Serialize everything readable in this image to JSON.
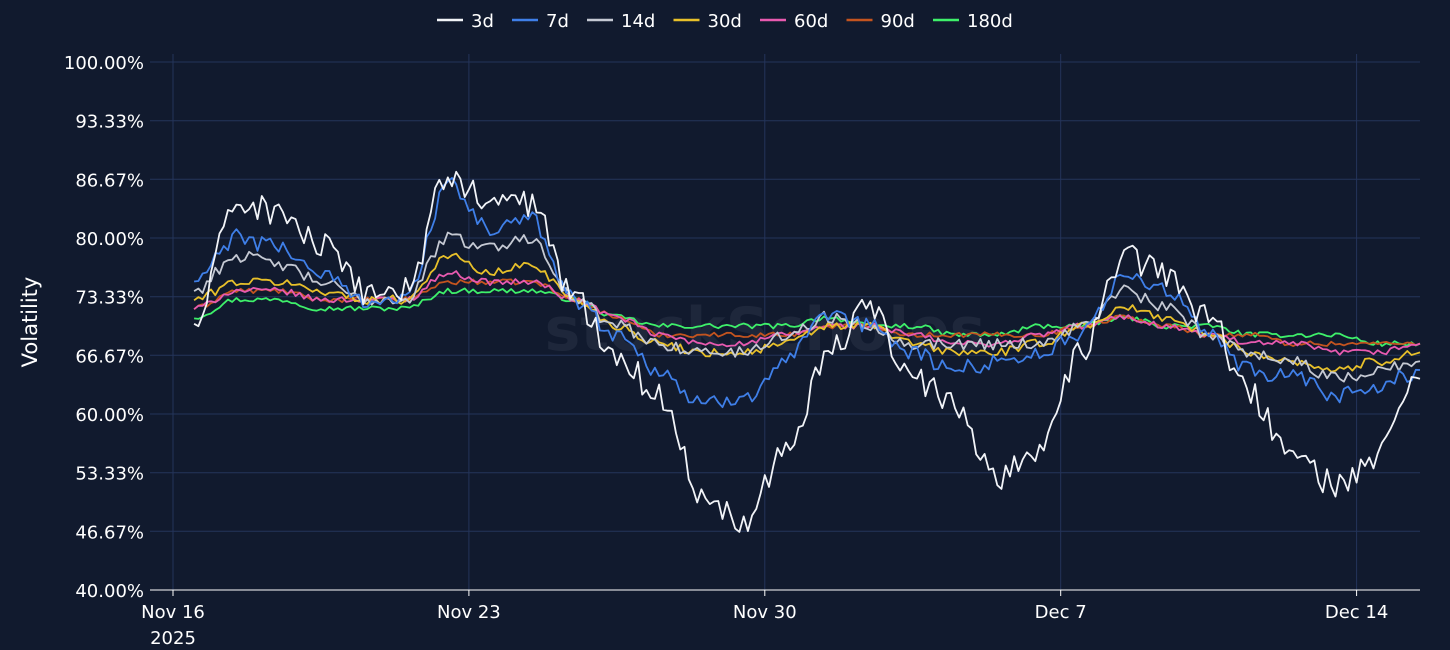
{
  "colors": {
    "background": "#111a2e",
    "grid": "#24345a"
  },
  "watermark": "stockScholes",
  "chart_data": {
    "type": "line",
    "title": "",
    "xlabel": "",
    "ylabel": "Volatility",
    "y_format": "percent",
    "ylim": [
      40,
      100
    ],
    "y_ticks": [
      40.0,
      46.67,
      53.33,
      60.0,
      66.67,
      73.33,
      80.0,
      86.67,
      93.33,
      100.0
    ],
    "y_tick_labels": [
      "40.00%",
      "46.67%",
      "53.33%",
      "60.00%",
      "66.67%",
      "73.33%",
      "80.00%",
      "86.67%",
      "93.33%",
      "100.00%"
    ],
    "x_range": [
      "2025-11-16",
      "2025-12-15"
    ],
    "x_ticks": [
      {
        "date": "2025-11-16",
        "label": "Nov 16",
        "sublabel": "2025"
      },
      {
        "date": "2025-11-23",
        "label": "Nov 23",
        "sublabel": ""
      },
      {
        "date": "2025-11-30",
        "label": "Nov 30",
        "sublabel": ""
      },
      {
        "date": "2025-12-07",
        "label": "Dec 7",
        "sublabel": ""
      },
      {
        "date": "2025-12-14",
        "label": "Dec 14",
        "sublabel": ""
      }
    ],
    "grid": true,
    "legend_position": "top-center",
    "x": [
      "2025-11-16",
      "2025-11-17",
      "2025-11-18",
      "2025-11-19",
      "2025-11-20",
      "2025-11-21",
      "2025-11-22",
      "2025-11-23",
      "2025-11-24",
      "2025-11-25",
      "2025-11-26",
      "2025-11-27",
      "2025-11-28",
      "2025-11-29",
      "2025-11-30",
      "2025-12-01",
      "2025-12-02",
      "2025-12-03",
      "2025-12-04",
      "2025-12-05",
      "2025-12-06",
      "2025-12-07",
      "2025-12-08",
      "2025-12-09",
      "2025-12-10",
      "2025-12-11",
      "2025-12-12",
      "2025-12-13",
      "2025-12-14",
      "2025-12-15"
    ],
    "series": [
      {
        "name": "3d",
        "color": "#f2f4f8",
        "values": [
          70,
          84,
          83,
          79,
          74,
          74,
          87,
          84,
          84,
          73,
          67,
          62,
          51,
          48,
          56,
          67,
          72,
          64,
          61,
          53,
          56,
          67,
          78,
          76,
          71,
          62,
          55,
          52,
          55,
          64
        ]
      },
      {
        "name": "7d",
        "color": "#3f7fe8",
        "values": [
          75,
          80,
          79,
          76,
          73,
          73,
          86,
          81,
          82,
          73,
          69,
          65,
          61,
          62,
          66,
          71,
          70,
          67,
          65,
          66,
          67,
          69,
          76,
          74,
          69,
          65,
          64,
          62,
          63,
          65
        ]
      },
      {
        "name": "14d",
        "color": "#c5c9d3",
        "values": [
          74,
          78,
          77,
          75,
          73,
          73,
          80,
          79,
          80,
          73,
          70,
          68,
          67,
          67,
          69,
          71,
          70,
          68,
          68,
          68,
          68,
          70,
          74,
          72,
          69,
          67,
          66,
          64,
          65,
          66
        ]
      },
      {
        "name": "30d",
        "color": "#e8c02a",
        "values": [
          73,
          75,
          75,
          74,
          73,
          73,
          78,
          76,
          77,
          73,
          70,
          68,
          67,
          67,
          68,
          70,
          70,
          68,
          67,
          67,
          68,
          70,
          72,
          71,
          69,
          67,
          66,
          65,
          66,
          67
        ]
      },
      {
        "name": "60d",
        "color": "#e85ab0",
        "values": [
          72,
          74,
          74,
          73,
          73,
          73,
          76,
          75,
          75,
          73,
          71,
          69,
          68,
          68,
          69,
          70,
          70,
          69,
          68,
          68,
          69,
          70,
          71,
          70,
          69,
          68,
          68,
          67,
          67,
          68
        ]
      },
      {
        "name": "90d",
        "color": "#c4541f",
        "values": [
          72,
          74,
          74,
          73,
          73,
          73,
          75,
          75,
          75,
          73,
          71,
          69,
          69,
          69,
          69,
          70,
          70,
          69,
          69,
          69,
          69,
          70,
          71,
          70,
          69,
          69,
          68,
          68,
          68,
          68
        ]
      },
      {
        "name": "180d",
        "color": "#3ef06a",
        "values": [
          71,
          73,
          73,
          72,
          72,
          72,
          74,
          74,
          74,
          73,
          71,
          70,
          70,
          70,
          70,
          71,
          70,
          70,
          69,
          69,
          70,
          70,
          71,
          70,
          70,
          69,
          69,
          69,
          68,
          68
        ]
      }
    ]
  }
}
